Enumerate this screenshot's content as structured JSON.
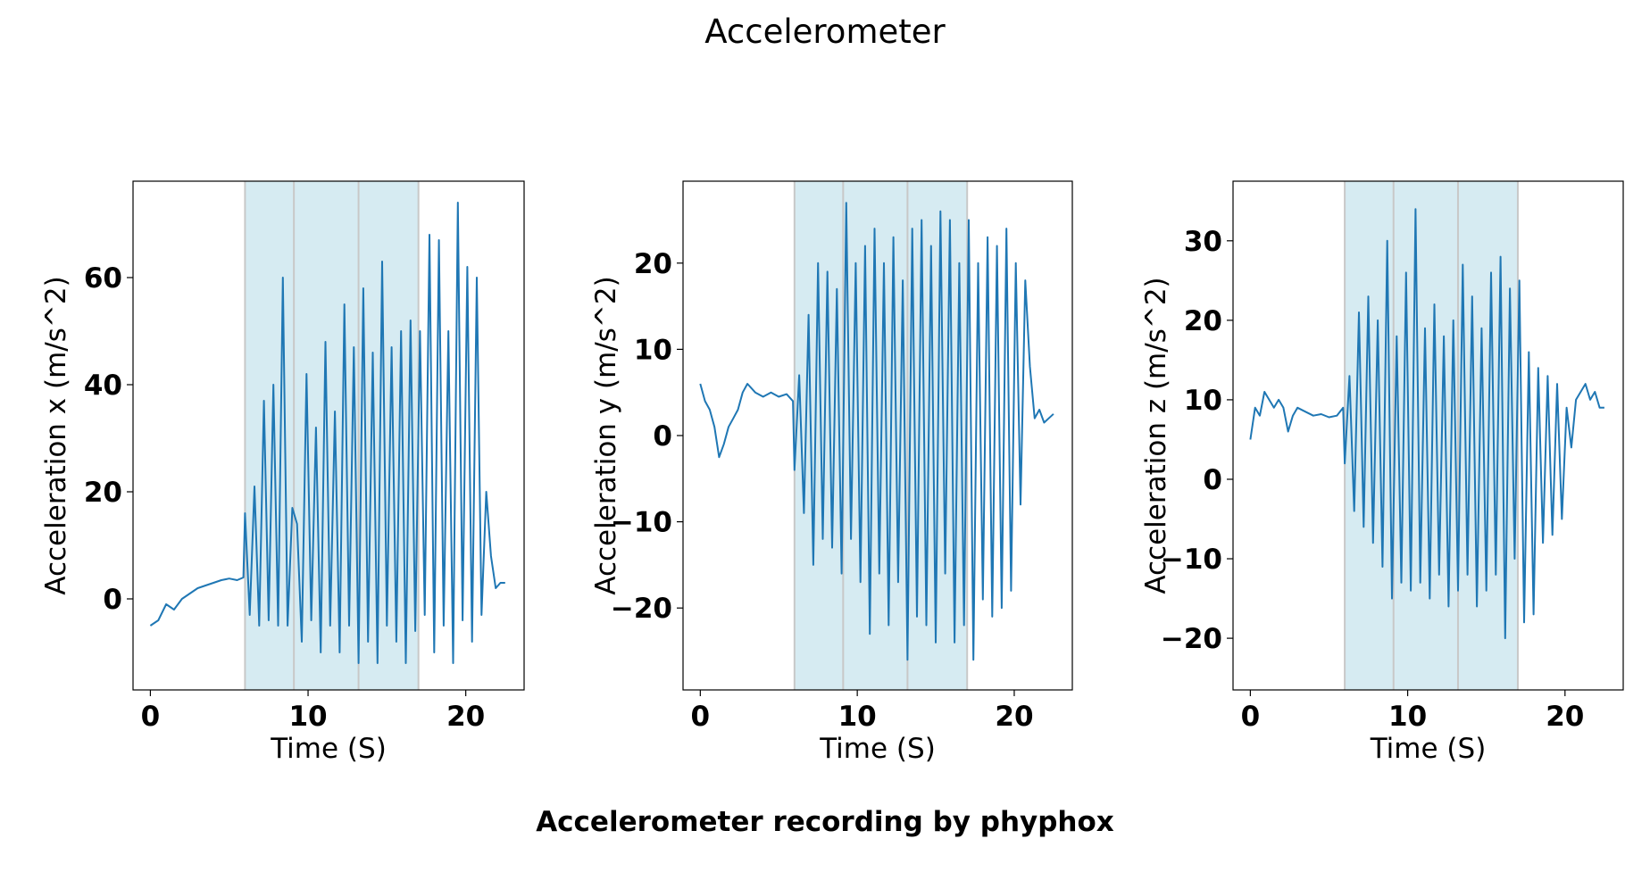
{
  "figure": {
    "title": "Accelerometer",
    "caption": "Accelerometer recording by phyphox"
  },
  "colors": {
    "line": "#1f77b4",
    "shade": "#add8e6",
    "divider": "#c8c8c8"
  },
  "chart_data": [
    {
      "type": "line",
      "xlabel": "Time (S)",
      "ylabel": "Acceleration x (m/s^2)",
      "xlim": [
        -1.1,
        23.7
      ],
      "ylim": [
        -17,
        78
      ],
      "xticks": [
        0,
        10,
        20
      ],
      "yticks": [
        0,
        20,
        40,
        60
      ],
      "shaded_spans": [
        [
          6.0,
          9.1
        ],
        [
          9.1,
          13.2
        ],
        [
          13.2,
          17.0
        ]
      ],
      "series": [
        {
          "x": [
            0,
            0.5,
            1.0,
            1.5,
            2.0,
            2.5,
            3.0,
            3.5,
            4.0,
            4.5,
            5.0,
            5.5,
            5.9,
            6.0,
            6.3,
            6.6,
            6.9,
            7.2,
            7.5,
            7.8,
            8.1,
            8.4,
            8.7,
            9.0,
            9.3,
            9.6,
            9.9,
            10.2,
            10.5,
            10.8,
            11.1,
            11.4,
            11.7,
            12.0,
            12.3,
            12.6,
            12.9,
            13.2,
            13.5,
            13.8,
            14.1,
            14.4,
            14.7,
            15.0,
            15.3,
            15.6,
            15.9,
            16.2,
            16.5,
            16.8,
            17.1,
            17.4,
            17.7,
            18.0,
            18.3,
            18.6,
            18.9,
            19.2,
            19.5,
            19.8,
            20.1,
            20.4,
            20.7,
            21.0,
            21.3,
            21.6,
            21.9,
            22.2,
            22.5
          ],
          "y": [
            -5,
            -4,
            -1,
            -2,
            0,
            1,
            2,
            2.5,
            3,
            3.5,
            3.8,
            3.5,
            4,
            16,
            -3,
            21,
            -5,
            37,
            -4,
            40,
            -5,
            60,
            -5,
            17,
            14,
            -8,
            42,
            -4,
            32,
            -10,
            48,
            -5,
            35,
            -10,
            55,
            -5,
            47,
            -12,
            58,
            -8,
            46,
            -12,
            63,
            -5,
            47,
            -8,
            50,
            -12,
            52,
            -6,
            50,
            -3,
            68,
            -10,
            67,
            -5,
            50,
            -12,
            74,
            -4,
            62,
            -8,
            60,
            -3,
            20,
            8,
            2,
            3,
            3
          ]
        }
      ]
    },
    {
      "type": "line",
      "xlabel": "Time (S)",
      "ylabel": "Acceleration y (m/s^2)",
      "xlim": [
        -1.1,
        23.7
      ],
      "ylim": [
        -29.5,
        29.5
      ],
      "xticks": [
        0,
        10,
        20
      ],
      "yticks": [
        -20,
        -10,
        0,
        10,
        20
      ],
      "shaded_spans": [
        [
          6.0,
          9.1
        ],
        [
          9.1,
          13.2
        ],
        [
          13.2,
          17.0
        ]
      ],
      "series": [
        {
          "x": [
            0,
            0.3,
            0.6,
            0.9,
            1.2,
            1.5,
            1.8,
            2.1,
            2.4,
            2.7,
            3.0,
            3.5,
            4.0,
            4.5,
            5.0,
            5.5,
            5.9,
            6.0,
            6.3,
            6.6,
            6.9,
            7.2,
            7.5,
            7.8,
            8.1,
            8.4,
            8.7,
            9.0,
            9.3,
            9.6,
            9.9,
            10.2,
            10.5,
            10.8,
            11.1,
            11.4,
            11.7,
            12.0,
            12.3,
            12.6,
            12.9,
            13.2,
            13.5,
            13.8,
            14.1,
            14.4,
            14.7,
            15.0,
            15.3,
            15.6,
            15.9,
            16.2,
            16.5,
            16.8,
            17.1,
            17.4,
            17.7,
            18.0,
            18.3,
            18.6,
            18.9,
            19.2,
            19.5,
            19.8,
            20.1,
            20.4,
            20.7,
            21.0,
            21.3,
            21.6,
            21.9,
            22.2,
            22.5
          ],
          "y": [
            6,
            4,
            3,
            1,
            -2.5,
            -1,
            1,
            2,
            3,
            5,
            6,
            5,
            4.5,
            5,
            4.5,
            4.8,
            4,
            -4,
            7,
            -9,
            14,
            -15,
            20,
            -12,
            19,
            -13,
            17,
            -16,
            27,
            -12,
            20,
            -17,
            22,
            -23,
            24,
            -16,
            20,
            -22,
            23,
            -17,
            18,
            -26,
            24,
            -21,
            25,
            -22,
            22,
            -24,
            26,
            -16,
            25,
            -24,
            20,
            -22,
            25,
            -26,
            20,
            -19,
            23,
            -21,
            22,
            -20,
            24,
            -18,
            20,
            -8,
            18,
            8,
            2,
            3,
            1.5,
            2,
            2.5
          ]
        }
      ]
    },
    {
      "type": "line",
      "xlabel": "Time (S)",
      "ylabel": "Acceleration z (m/s^2)",
      "xlim": [
        -1.1,
        23.7
      ],
      "ylim": [
        -26.5,
        37.5
      ],
      "xticks": [
        0,
        10,
        20
      ],
      "yticks": [
        -20,
        -10,
        0,
        10,
        20,
        30
      ],
      "shaded_spans": [
        [
          6.0,
          9.1
        ],
        [
          9.1,
          13.2
        ],
        [
          13.2,
          17.0
        ]
      ],
      "series": [
        {
          "x": [
            0,
            0.3,
            0.6,
            0.9,
            1.2,
            1.5,
            1.8,
            2.1,
            2.4,
            2.7,
            3.0,
            3.5,
            4.0,
            4.5,
            5.0,
            5.5,
            5.9,
            6.0,
            6.3,
            6.6,
            6.9,
            7.2,
            7.5,
            7.8,
            8.1,
            8.4,
            8.7,
            9.0,
            9.3,
            9.6,
            9.9,
            10.2,
            10.5,
            10.8,
            11.1,
            11.4,
            11.7,
            12.0,
            12.3,
            12.6,
            12.9,
            13.2,
            13.5,
            13.8,
            14.1,
            14.4,
            14.7,
            15.0,
            15.3,
            15.6,
            15.9,
            16.2,
            16.5,
            16.8,
            17.1,
            17.4,
            17.7,
            18.0,
            18.3,
            18.6,
            18.9,
            19.2,
            19.5,
            19.8,
            20.1,
            20.4,
            20.7,
            21.0,
            21.3,
            21.6,
            21.9,
            22.2,
            22.5
          ],
          "y": [
            5,
            9,
            8,
            11,
            10,
            9,
            10,
            9,
            6,
            8,
            9,
            8.5,
            8,
            8.2,
            7.8,
            8,
            9,
            2,
            13,
            -4,
            21,
            -6,
            23,
            -8,
            20,
            -11,
            30,
            -15,
            18,
            -13,
            26,
            -14,
            34,
            -13,
            19,
            -15,
            22,
            -12,
            18,
            -16,
            20,
            -14,
            27,
            -12,
            23,
            -16,
            19,
            -14,
            26,
            -12,
            28,
            -20,
            24,
            -10,
            25,
            -18,
            16,
            -17,
            14,
            -8,
            13,
            -7,
            12,
            -5,
            9,
            4,
            10,
            11,
            12,
            10,
            11,
            9,
            9
          ]
        }
      ]
    }
  ]
}
